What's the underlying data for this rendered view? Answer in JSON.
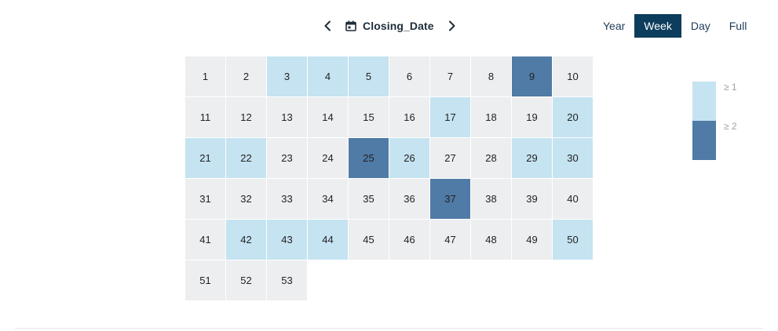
{
  "header": {
    "prev_icon": "chevron-left-icon",
    "next_icon": "chevron-right-icon",
    "field_icon": "calendar-icon",
    "field_label": "Closing_Date"
  },
  "modes": [
    {
      "label": "Year",
      "active": false
    },
    {
      "label": "Week",
      "active": true
    },
    {
      "label": "Day",
      "active": false
    },
    {
      "label": "Full",
      "active": false
    }
  ],
  "colors": {
    "empty": "#edeef0",
    "level1": "#c5e3f1",
    "level2": "#4f7ba6",
    "active_mode_bg": "#0d3d5c"
  },
  "grid": {
    "columns": 10,
    "weeks": [
      {
        "label": "1",
        "level": 0
      },
      {
        "label": "2",
        "level": 0
      },
      {
        "label": "3",
        "level": 1
      },
      {
        "label": "4",
        "level": 1
      },
      {
        "label": "5",
        "level": 1
      },
      {
        "label": "6",
        "level": 0
      },
      {
        "label": "7",
        "level": 0
      },
      {
        "label": "8",
        "level": 0
      },
      {
        "label": "9",
        "level": 2
      },
      {
        "label": "10",
        "level": 0
      },
      {
        "label": "11",
        "level": 0
      },
      {
        "label": "12",
        "level": 0
      },
      {
        "label": "13",
        "level": 0
      },
      {
        "label": "14",
        "level": 0
      },
      {
        "label": "15",
        "level": 0
      },
      {
        "label": "16",
        "level": 0
      },
      {
        "label": "17",
        "level": 1
      },
      {
        "label": "18",
        "level": 0
      },
      {
        "label": "19",
        "level": 0
      },
      {
        "label": "20",
        "level": 1
      },
      {
        "label": "21",
        "level": 1
      },
      {
        "label": "22",
        "level": 1
      },
      {
        "label": "23",
        "level": 0
      },
      {
        "label": "24",
        "level": 0
      },
      {
        "label": "25",
        "level": 2
      },
      {
        "label": "26",
        "level": 1
      },
      {
        "label": "27",
        "level": 0
      },
      {
        "label": "28",
        "level": 0
      },
      {
        "label": "29",
        "level": 1
      },
      {
        "label": "30",
        "level": 1
      },
      {
        "label": "31",
        "level": 0
      },
      {
        "label": "32",
        "level": 0
      },
      {
        "label": "33",
        "level": 0
      },
      {
        "label": "34",
        "level": 0
      },
      {
        "label": "35",
        "level": 0
      },
      {
        "label": "36",
        "level": 0
      },
      {
        "label": "37",
        "level": 2
      },
      {
        "label": "38",
        "level": 0
      },
      {
        "label": "39",
        "level": 0
      },
      {
        "label": "40",
        "level": 0
      },
      {
        "label": "41",
        "level": 0
      },
      {
        "label": "42",
        "level": 1
      },
      {
        "label": "43",
        "level": 1
      },
      {
        "label": "44",
        "level": 1
      },
      {
        "label": "45",
        "level": 0
      },
      {
        "label": "46",
        "level": 0
      },
      {
        "label": "47",
        "level": 0
      },
      {
        "label": "48",
        "level": 0
      },
      {
        "label": "49",
        "level": 0
      },
      {
        "label": "50",
        "level": 1
      },
      {
        "label": "51",
        "level": 0
      },
      {
        "label": "52",
        "level": 0
      },
      {
        "label": "53",
        "level": 0
      }
    ]
  },
  "legend": [
    {
      "label": "≥ 1",
      "level": 1
    },
    {
      "label": "≥ 2",
      "level": 2
    }
  ]
}
